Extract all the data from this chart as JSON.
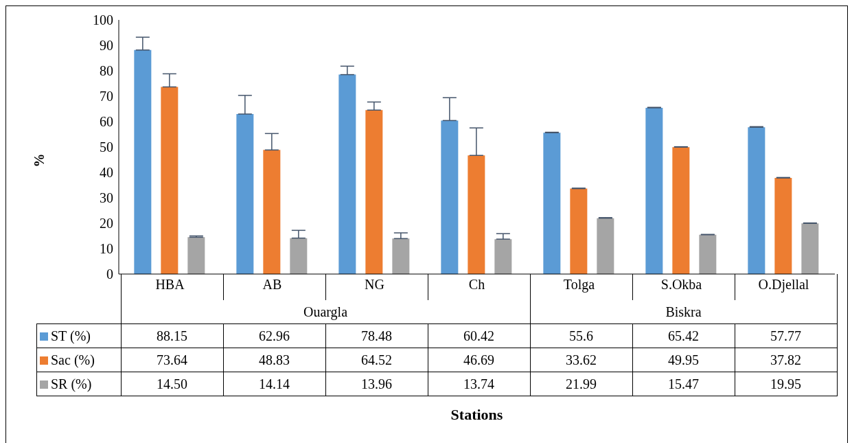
{
  "chart_data": {
    "type": "bar",
    "ylabel": "%",
    "categories": [
      "HBA",
      "AB",
      "NG",
      "Ch",
      "Tolga",
      "S.Okba",
      "O.Djellal"
    ],
    "ylim": [
      0,
      100
    ],
    "yticks": [
      0,
      10,
      20,
      30,
      40,
      50,
      60,
      70,
      80,
      90,
      100
    ],
    "grid": false,
    "legend": "bottom",
    "annotations": [
      "Ouargla",
      "Biskra",
      "Stations"
    ],
    "series": [
      {
        "name": "ST (%)",
        "color": "#5b9bd5",
        "values": [
          88.15,
          62.96,
          78.48,
          60.42,
          55.6,
          65.42,
          57.77
        ],
        "value_labels": [
          "88.15",
          "62.96",
          "78.48",
          "60.42",
          "55.6",
          "65.42",
          "57.77"
        ],
        "errors": [
          [
            88.15,
            93.2
          ],
          [
            62.96,
            70.3
          ],
          [
            78.48,
            81.8
          ],
          [
            60.42,
            69.4
          ],
          [
            55.6,
            55.8
          ],
          [
            65.42,
            65.6
          ],
          [
            57.77,
            58
          ]
        ]
      },
      {
        "name": "Sac (%)",
        "color": "#ed7d31",
        "values": [
          73.64,
          48.83,
          64.52,
          46.69,
          33.62,
          49.95,
          37.82
        ],
        "value_labels": [
          "73.64",
          "48.83",
          "64.52",
          "46.69",
          "33.62",
          "49.95",
          "37.82"
        ],
        "errors": [
          [
            73.64,
            78.8
          ],
          [
            48.83,
            55.3
          ],
          [
            64.52,
            67.7
          ],
          [
            46.69,
            57.5
          ],
          [
            33.62,
            33.8
          ],
          [
            49.95,
            50.1
          ],
          [
            37.82,
            38
          ]
        ]
      },
      {
        "name": "SR (%)",
        "color": "#a5a5a5",
        "values": [
          14.5,
          14.14,
          13.96,
          13.74,
          21.99,
          15.47,
          19.95
        ],
        "value_labels": [
          "14.50",
          "14.14",
          "13.96",
          "13.74",
          "21.99",
          "15.47",
          "19.95"
        ],
        "errors": [
          [
            14.5,
            15
          ],
          [
            14.14,
            17.2
          ],
          [
            13.96,
            16.2
          ],
          [
            13.74,
            15.9
          ],
          [
            21.99,
            22.2
          ],
          [
            15.47,
            15.6
          ],
          [
            19.95,
            20.1
          ]
        ]
      }
    ]
  }
}
